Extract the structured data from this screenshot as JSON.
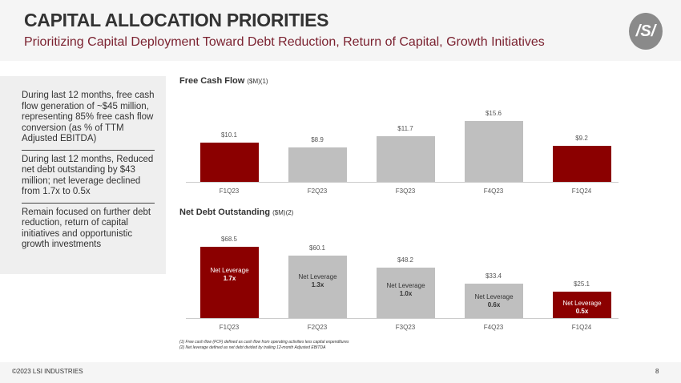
{
  "header": {
    "title": "CAPITAL ALLOCATION PRIORITIES",
    "subtitle": "Prioritizing Capital Deployment Toward Debt Reduction, Return of Capital, Growth Initiatives",
    "logo_text": "LSI"
  },
  "sidebar": {
    "points": [
      "During last 12 months, free cash flow generation of ~$45 million, representing 85% free cash flow conversion (as % of TTM Adjusted EBITDA)",
      "During last 12 months, Reduced net debt outstanding by $43 million; net leverage declined from 1.7x to 0.5x",
      "Remain focused on further debt reduction, return of capital initiatives and opportunistic growth investments"
    ]
  },
  "colors": {
    "highlight": "#8b0000",
    "neutral": "#bfbfbf",
    "subtitle": "#7b2230"
  },
  "chart_data": [
    {
      "type": "bar",
      "title": "Free Cash Flow",
      "title_suffix": "($M)(1)",
      "categories": [
        "F1Q23",
        "F2Q23",
        "F3Q23",
        "F4Q23",
        "F1Q24"
      ],
      "values": [
        10.1,
        8.9,
        11.7,
        15.6,
        9.2
      ],
      "labels": [
        "$10.1",
        "$8.9",
        "$11.7",
        "$15.6",
        "$9.2"
      ],
      "highlighted": [
        true,
        false,
        false,
        false,
        true
      ]
    },
    {
      "type": "bar",
      "title": "Net Debt Outstanding",
      "title_suffix": "($M)(2)",
      "categories": [
        "F1Q23",
        "F2Q23",
        "F3Q23",
        "F4Q23",
        "F1Q24"
      ],
      "values": [
        68.5,
        60.1,
        48.2,
        33.4,
        25.1
      ],
      "labels": [
        "$68.5",
        "$60.1",
        "$48.2",
        "$33.4",
        "$25.1"
      ],
      "highlighted": [
        true,
        false,
        false,
        false,
        true
      ],
      "annotation_label": "Net Leverage",
      "annotations": [
        "1.7x",
        "1.3x",
        "1.0x",
        "0.6x",
        "0.5x"
      ]
    }
  ],
  "footnotes": [
    "(1)    Free cash flow (FCF) defined as cash flow from operating activities less capital expenditures",
    "(2)    Net leverage defined as net debt divided by trailing 12-month Adjusted EBITDA"
  ],
  "footer": {
    "copyright": "©2023 LSI INDUSTRIES",
    "page": "8"
  }
}
